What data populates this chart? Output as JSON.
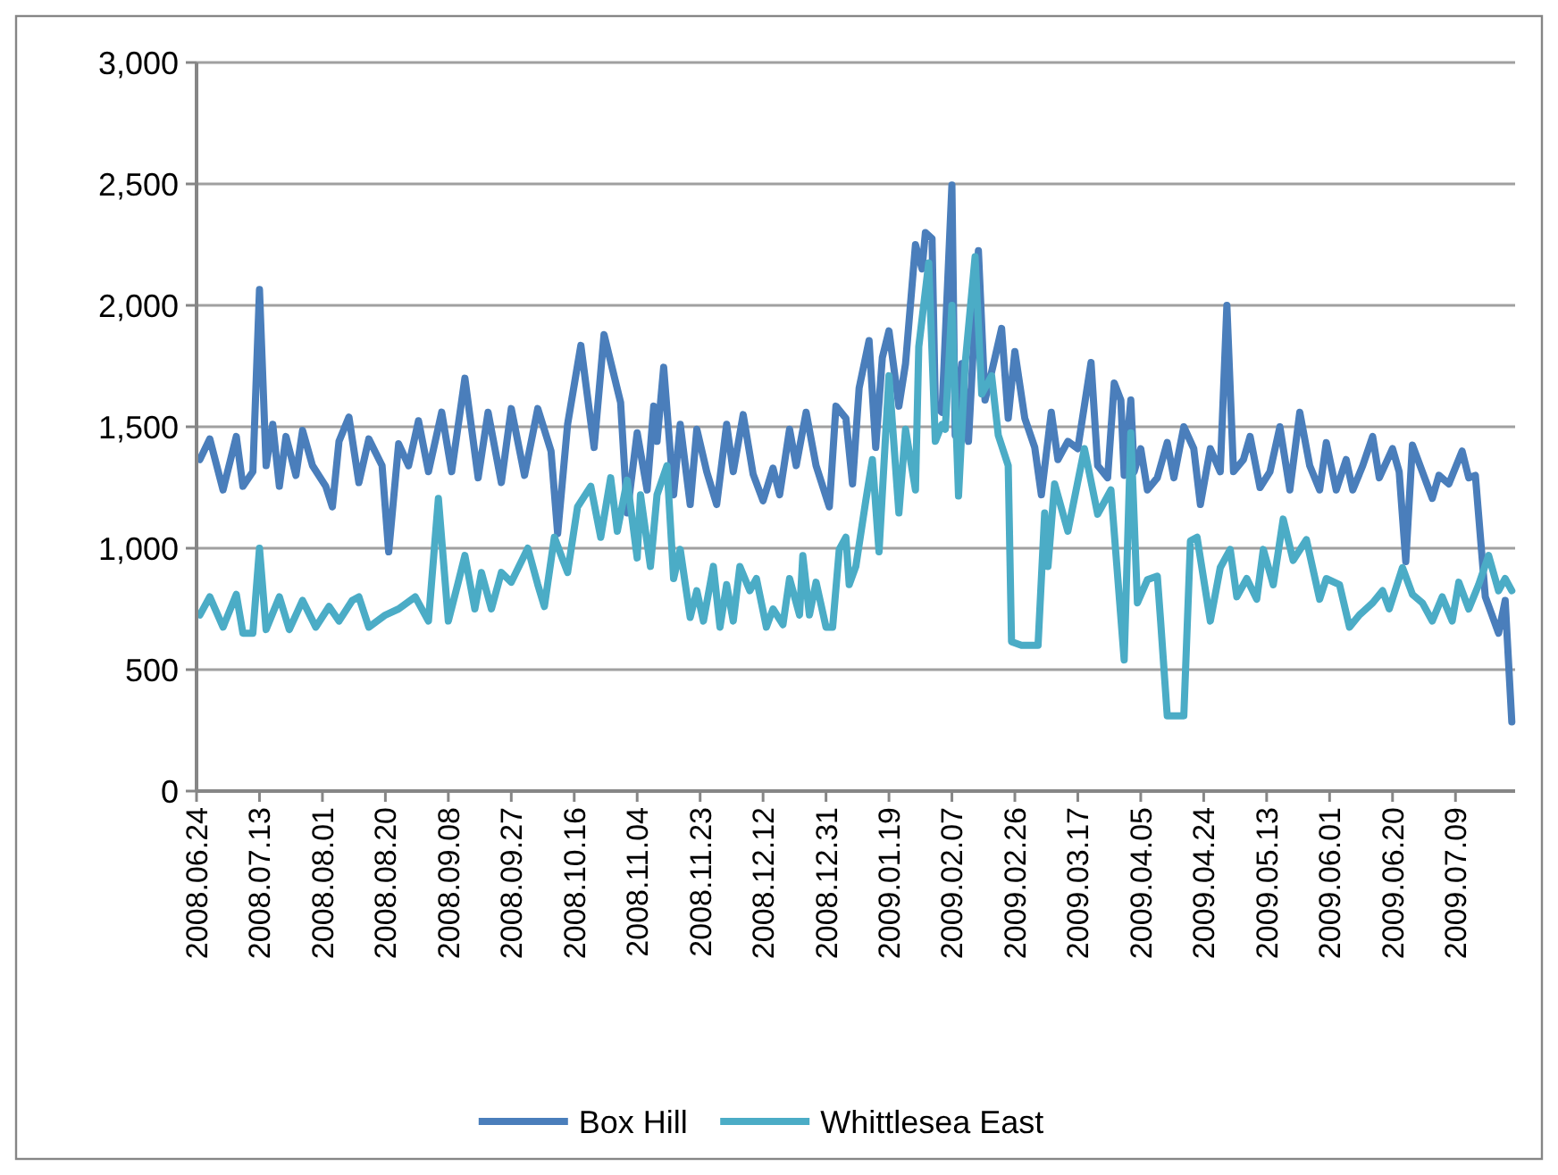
{
  "chart_data": {
    "type": "line",
    "xlim": [
      "2008-06-24",
      "2009-07-27"
    ],
    "xticks": [
      {
        "value": "2008-06-24",
        "label": "2008.06.24"
      },
      {
        "value": "2008-07-13",
        "label": "2008.07.13"
      },
      {
        "value": "2008-08-01",
        "label": "2008.08.01"
      },
      {
        "value": "2008-08-20",
        "label": "2008.08.20"
      },
      {
        "value": "2008-09-08",
        "label": "2008.09.08"
      },
      {
        "value": "2008-09-27",
        "label": "2008.09.27"
      },
      {
        "value": "2008-10-16",
        "label": "2008.10.16"
      },
      {
        "value": "2008-11-04",
        "label": "2008.11.04"
      },
      {
        "value": "2008-11-23",
        "label": "2008.11.23"
      },
      {
        "value": "2008-12-12",
        "label": "2008.12.12"
      },
      {
        "value": "2008-12-31",
        "label": "2008.12.31"
      },
      {
        "value": "2009-01-19",
        "label": "2009.01.19"
      },
      {
        "value": "2009-02-07",
        "label": "2009.02.07"
      },
      {
        "value": "2009-02-26",
        "label": "2009.02.26"
      },
      {
        "value": "2009-03-17",
        "label": "2009.03.17"
      },
      {
        "value": "2009-04-05",
        "label": "2009.04.05"
      },
      {
        "value": "2009-04-24",
        "label": "2009.04.24"
      },
      {
        "value": "2009-05-13",
        "label": "2009.05.13"
      },
      {
        "value": "2009-06-01",
        "label": "2009.06.01"
      },
      {
        "value": "2009-06-20",
        "label": "2009.06.20"
      },
      {
        "value": "2009-07-09",
        "label": "2009.07.09"
      }
    ],
    "ylim": [
      0,
      3000
    ],
    "yticks": [
      0,
      500,
      {
        "value": 1000,
        "label": "1,000"
      },
      {
        "value": 1500,
        "label": "1,500"
      },
      {
        "value": 2000,
        "label": "2,000"
      },
      {
        "value": 2500,
        "label": "2,500"
      },
      {
        "value": 3000,
        "label": "3,000"
      }
    ],
    "grid": "y",
    "legend": "bottom",
    "marker": "none",
    "line_style": "solid",
    "series": [
      {
        "name": "Box Hill",
        "color": "#4a7ebb",
        "x": [
          "2008-06-25",
          "2008-06-28",
          "2008-07-02",
          "2008-07-06",
          "2008-07-08",
          "2008-07-11",
          "2008-07-13",
          "2008-07-15",
          "2008-07-17",
          "2008-07-19",
          "2008-07-21",
          "2008-07-24",
          "2008-07-26",
          "2008-07-29",
          "2008-08-02",
          "2008-08-04",
          "2008-08-06",
          "2008-08-09",
          "2008-08-12",
          "2008-08-15",
          "2008-08-19",
          "2008-08-21",
          "2008-08-24",
          "2008-08-27",
          "2008-08-30",
          "2008-09-02",
          "2008-09-06",
          "2008-09-09",
          "2008-09-13",
          "2008-09-17",
          "2008-09-20",
          "2008-09-24",
          "2008-09-27",
          "2008-10-01",
          "2008-10-05",
          "2008-10-09",
          "2008-10-11",
          "2008-10-14",
          "2008-10-18",
          "2008-10-22",
          "2008-10-25",
          "2008-10-30",
          "2008-11-01",
          "2008-11-04",
          "2008-11-07",
          "2008-11-09",
          "2008-11-10",
          "2008-11-12",
          "2008-11-15",
          "2008-11-17",
          "2008-11-20",
          "2008-11-22",
          "2008-11-25",
          "2008-11-28",
          "2008-12-01",
          "2008-12-03",
          "2008-12-06",
          "2008-12-09",
          "2008-12-12",
          "2008-12-15",
          "2008-12-17",
          "2008-12-20",
          "2008-12-22",
          "2008-12-25",
          "2008-12-28",
          "2009-01-01",
          "2009-01-03",
          "2009-01-06",
          "2009-01-08",
          "2009-01-10",
          "2009-01-13",
          "2009-01-15",
          "2009-01-17",
          "2009-01-19",
          "2009-01-22",
          "2009-01-24",
          "2009-01-27",
          "2009-01-29",
          "2009-01-30",
          "2009-02-01",
          "2009-02-02",
          "2009-02-04",
          "2009-02-07",
          "2009-02-08",
          "2009-02-10",
          "2009-02-12",
          "2009-02-15",
          "2009-02-17",
          "2009-02-20",
          "2009-02-22",
          "2009-02-24",
          "2009-02-26",
          "2009-03-01",
          "2009-03-04",
          "2009-03-06",
          "2009-03-09",
          "2009-03-11",
          "2009-03-14",
          "2009-03-17",
          "2009-03-21",
          "2009-03-23",
          "2009-03-26",
          "2009-03-28",
          "2009-03-30",
          "2009-03-31",
          "2009-04-02",
          "2009-04-03",
          "2009-04-05",
          "2009-04-07",
          "2009-04-10",
          "2009-04-13",
          "2009-04-15",
          "2009-04-18",
          "2009-04-21",
          "2009-04-23",
          "2009-04-26",
          "2009-04-29",
          "2009-05-01",
          "2009-05-03",
          "2009-05-06",
          "2009-05-08",
          "2009-05-11",
          "2009-05-14",
          "2009-05-17",
          "2009-05-20",
          "2009-05-23",
          "2009-05-26",
          "2009-05-29",
          "2009-05-31",
          "2009-06-03",
          "2009-06-06",
          "2009-06-08",
          "2009-06-11",
          "2009-06-14",
          "2009-06-16",
          "2009-06-20",
          "2009-06-22",
          "2009-06-24",
          "2009-06-26",
          "2009-06-29",
          "2009-07-02",
          "2009-07-04",
          "2009-07-07",
          "2009-07-11",
          "2009-07-13",
          "2009-07-15",
          "2009-07-18",
          "2009-07-22",
          "2009-07-24",
          "2009-07-26"
        ],
        "values": [
          1365,
          1450,
          1240,
          1460,
          1255,
          1315,
          2065,
          1340,
          1510,
          1255,
          1460,
          1300,
          1485,
          1340,
          1255,
          1170,
          1440,
          1540,
          1270,
          1450,
          1340,
          985,
          1430,
          1340,
          1525,
          1315,
          1560,
          1315,
          1700,
          1290,
          1560,
          1270,
          1575,
          1300,
          1575,
          1400,
          1060,
          1510,
          1835,
          1415,
          1880,
          1600,
          1145,
          1475,
          1240,
          1585,
          1440,
          1745,
          1220,
          1510,
          1180,
          1490,
          1315,
          1180,
          1510,
          1315,
          1550,
          1305,
          1195,
          1330,
          1220,
          1490,
          1340,
          1560,
          1340,
          1170,
          1585,
          1535,
          1265,
          1660,
          1855,
          1415,
          1785,
          1895,
          1585,
          1760,
          2250,
          2150,
          2300,
          2275,
          1585,
          1560,
          2495,
          1465,
          1760,
          1440,
          2225,
          1610,
          1785,
          1905,
          1535,
          1810,
          1535,
          1415,
          1220,
          1560,
          1365,
          1440,
          1410,
          1765,
          1340,
          1290,
          1680,
          1610,
          1300,
          1610,
          1315,
          1410,
          1240,
          1290,
          1435,
          1290,
          1500,
          1410,
          1180,
          1410,
          1315,
          2000,
          1315,
          1365,
          1460,
          1250,
          1315,
          1500,
          1240,
          1560,
          1340,
          1240,
          1435,
          1240,
          1365,
          1240,
          1340,
          1460,
          1290,
          1410,
          1315,
          945,
          1425,
          1315,
          1205,
          1300,
          1265,
          1400,
          1290,
          1300,
          800,
          650,
          785,
          285
        ]
      },
      {
        "name": "Whittlesea East",
        "color": "#4bacc6",
        "x": [
          "2008-06-25",
          "2008-06-28",
          "2008-07-02",
          "2008-07-06",
          "2008-07-08",
          "2008-07-11",
          "2008-07-13",
          "2008-07-15",
          "2008-07-19",
          "2008-07-22",
          "2008-07-26",
          "2008-07-30",
          "2008-08-03",
          "2008-08-06",
          "2008-08-10",
          "2008-08-12",
          "2008-08-15",
          "2008-08-20",
          "2008-08-24",
          "2008-08-29",
          "2008-09-02",
          "2008-09-05",
          "2008-09-08",
          "2008-09-11",
          "2008-09-13",
          "2008-09-16",
          "2008-09-18",
          "2008-09-21",
          "2008-09-24",
          "2008-09-27",
          "2008-10-02",
          "2008-10-05",
          "2008-10-07",
          "2008-10-10",
          "2008-10-14",
          "2008-10-17",
          "2008-10-21",
          "2008-10-24",
          "2008-10-27",
          "2008-10-29",
          "2008-11-01",
          "2008-11-04",
          "2008-11-05",
          "2008-11-08",
          "2008-11-10",
          "2008-11-13",
          "2008-11-15",
          "2008-11-17",
          "2008-11-20",
          "2008-11-22",
          "2008-11-24",
          "2008-11-27",
          "2008-11-29",
          "2008-12-01",
          "2008-12-03",
          "2008-12-05",
          "2008-12-08",
          "2008-12-10",
          "2008-12-13",
          "2008-12-15",
          "2008-12-18",
          "2008-12-20",
          "2008-12-23",
          "2008-12-24",
          "2008-12-26",
          "2008-12-28",
          "2008-12-31",
          "2009-01-02",
          "2009-01-04",
          "2009-01-06",
          "2009-01-07",
          "2009-01-09",
          "2009-01-12",
          "2009-01-14",
          "2009-01-16",
          "2009-01-19",
          "2009-01-22",
          "2009-01-24",
          "2009-01-27",
          "2009-01-28",
          "2009-01-31",
          "2009-02-02",
          "2009-02-04",
          "2009-02-05",
          "2009-02-07",
          "2009-02-09",
          "2009-02-11",
          "2009-02-14",
          "2009-02-16",
          "2009-02-19",
          "2009-02-21",
          "2009-02-24",
          "2009-02-25",
          "2009-02-28",
          "2009-03-05",
          "2009-03-07",
          "2009-03-08",
          "2009-03-10",
          "2009-03-14",
          "2009-03-19",
          "2009-03-23",
          "2009-03-27",
          "2009-03-31",
          "2009-04-02",
          "2009-04-04",
          "2009-04-07",
          "2009-04-10",
          "2009-04-11",
          "2009-04-13",
          "2009-04-18",
          "2009-04-20",
          "2009-04-22",
          "2009-04-26",
          "2009-04-29",
          "2009-05-02",
          "2009-05-04",
          "2009-05-07",
          "2009-05-10",
          "2009-05-12",
          "2009-05-15",
          "2009-05-18",
          "2009-05-21",
          "2009-05-25",
          "2009-05-29",
          "2009-05-31",
          "2009-06-04",
          "2009-06-07",
          "2009-06-10",
          "2009-06-14",
          "2009-06-17",
          "2009-06-19",
          "2009-06-23",
          "2009-06-26",
          "2009-06-29",
          "2009-07-02",
          "2009-07-05",
          "2009-07-08",
          "2009-07-10",
          "2009-07-13",
          "2009-07-16",
          "2009-07-19",
          "2009-07-22",
          "2009-07-24",
          "2009-07-26"
        ],
        "values": [
          725,
          800,
          675,
          810,
          650,
          650,
          1000,
          665,
          800,
          665,
          785,
          675,
          760,
          700,
          785,
          800,
          675,
          725,
          750,
          800,
          700,
          1205,
          700,
          860,
          970,
          750,
          900,
          750,
          900,
          860,
          1000,
          850,
          760,
          1045,
          900,
          1170,
          1255,
          1045,
          1290,
          1070,
          1280,
          960,
          1220,
          925,
          1220,
          1340,
          875,
          995,
          715,
          825,
          700,
          925,
          675,
          850,
          700,
          925,
          825,
          875,
          675,
          750,
          685,
          875,
          725,
          970,
          725,
          860,
          675,
          675,
          995,
          1045,
          850,
          925,
          1195,
          1365,
          985,
          1710,
          1145,
          1490,
          1240,
          1830,
          2175,
          1440,
          1510,
          1490,
          2000,
          1215,
          1760,
          2200,
          1635,
          1710,
          1465,
          1340,
          615,
          600,
          600,
          1145,
          925,
          1265,
          1070,
          1410,
          1140,
          1240,
          540,
          1475,
          775,
          870,
          885,
          700,
          310,
          310,
          1030,
          1045,
          700,
          920,
          995,
          800,
          875,
          790,
          995,
          850,
          1120,
          950,
          1035,
          790,
          875,
          850,
          675,
          725,
          775,
          825,
          750,
          920,
          810,
          775,
          700,
          800,
          700,
          860,
          750,
          850,
          970,
          825,
          875,
          825
        ]
      }
    ]
  }
}
